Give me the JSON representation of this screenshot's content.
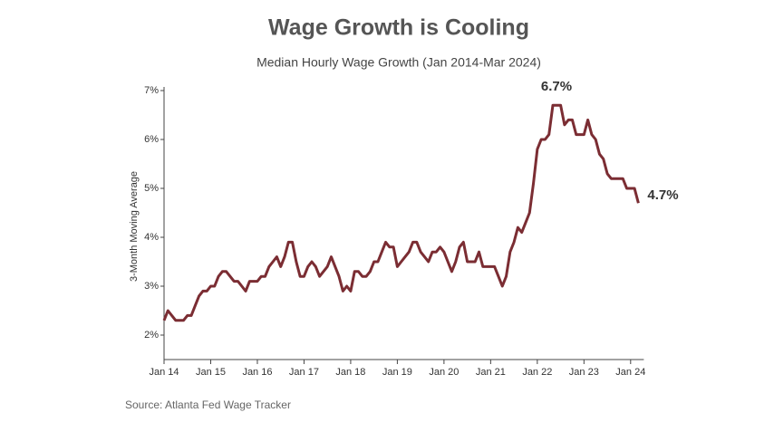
{
  "chart_data": {
    "type": "line",
    "title": "Wage Growth is Cooling",
    "subtitle": "Median Hourly Wage Growth (Jan 2014-Mar 2024)",
    "y_label": "3-Month Moving Average",
    "source": "Source: Atlanta Fed Wage Tracker",
    "annotations": [
      "6.7%",
      "4.7%"
    ],
    "categories": [
      "Jan 14",
      null,
      null,
      null,
      null,
      null,
      null,
      null,
      null,
      null,
      null,
      null,
      "Jan 15",
      null,
      null,
      null,
      null,
      null,
      null,
      null,
      null,
      null,
      null,
      null,
      "Jan 16",
      null,
      null,
      null,
      null,
      null,
      null,
      null,
      null,
      null,
      null,
      null,
      "Jan 17",
      null,
      null,
      null,
      null,
      null,
      null,
      null,
      null,
      null,
      null,
      null,
      "Jan 18",
      null,
      null,
      null,
      null,
      null,
      null,
      null,
      null,
      null,
      null,
      null,
      "Jan 19",
      null,
      null,
      null,
      null,
      null,
      null,
      null,
      null,
      null,
      null,
      null,
      "Jan 20",
      null,
      null,
      null,
      null,
      null,
      null,
      null,
      null,
      null,
      null,
      null,
      "Jan 21",
      null,
      null,
      null,
      null,
      null,
      null,
      null,
      null,
      null,
      null,
      null,
      "Jan 22",
      null,
      null,
      null,
      null,
      null,
      null,
      null,
      null,
      null,
      null,
      null,
      "Jan 23",
      null,
      null,
      null,
      null,
      null,
      null,
      null,
      null,
      null,
      null,
      null,
      "Jan 24",
      null,
      null
    ],
    "series": [
      {
        "name": "Median Hourly Wage Growth",
        "color": "#7b2d33",
        "values": [
          2.3,
          2.5,
          2.4,
          2.3,
          2.3,
          2.3,
          2.4,
          2.4,
          2.6,
          2.8,
          2.9,
          2.9,
          3.0,
          3.0,
          3.2,
          3.3,
          3.3,
          3.2,
          3.1,
          3.1,
          3.0,
          2.9,
          3.1,
          3.1,
          3.1,
          3.2,
          3.2,
          3.4,
          3.5,
          3.6,
          3.4,
          3.6,
          3.9,
          3.9,
          3.5,
          3.2,
          3.2,
          3.4,
          3.5,
          3.4,
          3.2,
          3.3,
          3.4,
          3.6,
          3.4,
          3.2,
          2.9,
          3.0,
          2.9,
          3.3,
          3.3,
          3.2,
          3.2,
          3.3,
          3.5,
          3.5,
          3.7,
          3.9,
          3.8,
          3.8,
          3.4,
          3.5,
          3.6,
          3.7,
          3.9,
          3.9,
          3.7,
          3.6,
          3.5,
          3.7,
          3.7,
          3.8,
          3.7,
          3.5,
          3.3,
          3.5,
          3.8,
          3.9,
          3.5,
          3.5,
          3.5,
          3.7,
          3.4,
          3.4,
          3.4,
          3.4,
          3.2,
          3.0,
          3.2,
          3.7,
          3.9,
          4.2,
          4.1,
          4.3,
          4.5,
          5.1,
          5.8,
          6.0,
          6.0,
          6.1,
          6.7,
          6.7,
          6.7,
          6.3,
          6.4,
          6.4,
          6.1,
          6.1,
          6.1,
          6.4,
          6.1,
          6.0,
          5.7,
          5.6,
          5.3,
          5.2,
          5.2,
          5.2,
          5.2,
          5.0,
          5.0,
          5.0,
          4.7
        ]
      }
    ],
    "ylim": [
      1.5,
      7
    ],
    "yticks": [
      {
        "value": 2,
        "label": "2%"
      },
      {
        "value": 3,
        "label": "3%"
      },
      {
        "value": 4,
        "label": "4%"
      },
      {
        "value": 5,
        "label": "5%"
      },
      {
        "value": 6,
        "label": "6%"
      },
      {
        "value": 7,
        "label": "7%"
      }
    ],
    "grid": false
  }
}
